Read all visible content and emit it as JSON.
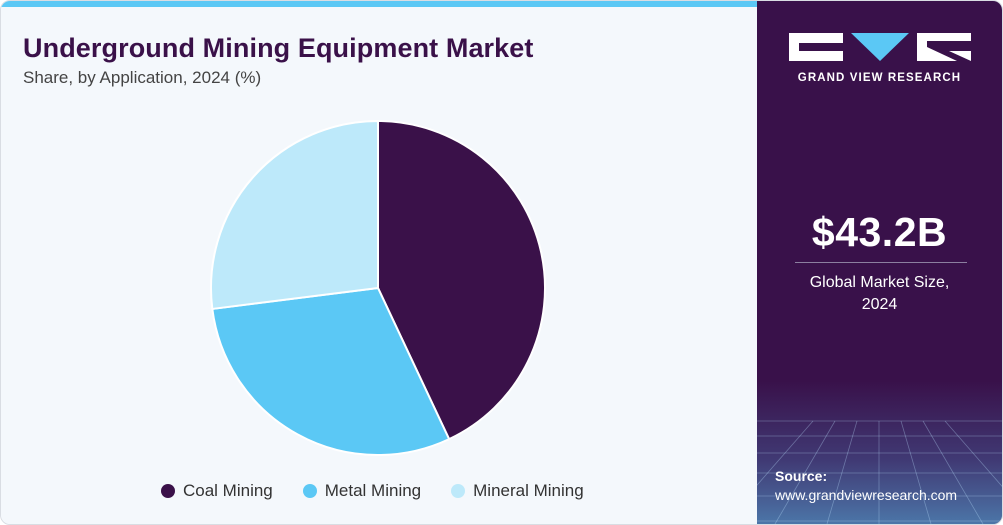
{
  "chart_data": {
    "type": "pie",
    "title": "Underground Mining Equipment Market",
    "subtitle": "Share, by Application, 2024 (%)",
    "categories": [
      "Coal Mining",
      "Metal Mining",
      "Mineral Mining"
    ],
    "values": [
      43,
      30,
      27
    ],
    "colors": [
      "#3a1149",
      "#5bc8f5",
      "#bde9fa"
    ],
    "legend_position": "bottom"
  },
  "sidebar": {
    "brand": "GRAND VIEW RESEARCH",
    "stat_value": "$43.2B",
    "stat_label_line1": "Global Market Size,",
    "stat_label_line2": "2024",
    "source_label": "Source:",
    "source_url": "www.grandviewresearch.com"
  },
  "colors": {
    "primary": "#3a1149",
    "accent": "#5bc8f5",
    "light": "#bde9fa"
  }
}
